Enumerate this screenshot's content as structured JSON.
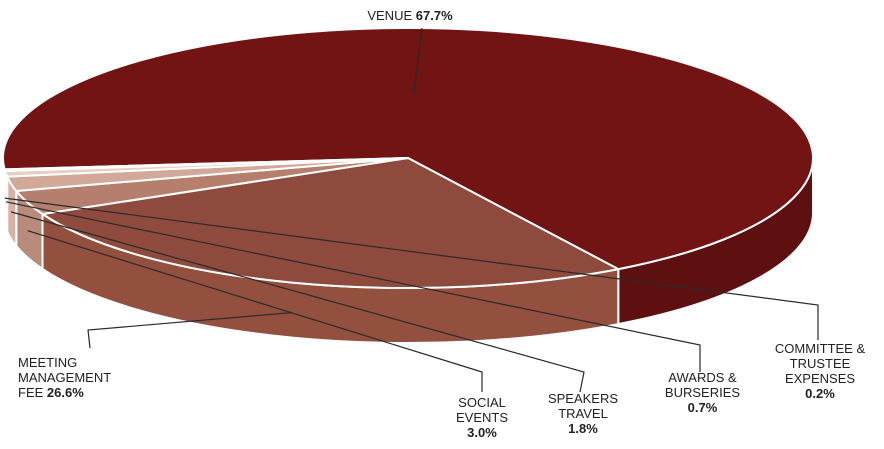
{
  "chart_data": {
    "type": "pie",
    "title": "",
    "series": [
      {
        "values": [
          67.7,
          26.6,
          3.0,
          1.8,
          0.7,
          0.2
        ]
      }
    ],
    "slices": [
      {
        "label": "VENUE",
        "value": 67.7,
        "pct_text": "67.7%",
        "color": "#721414",
        "side": "#5e1010"
      },
      {
        "label": "MEETING MANAGEMENT FEE",
        "value": 26.6,
        "pct_text": "26.6%",
        "color": "#8e4a3c",
        "side": "#93503f"
      },
      {
        "label": "SOCIAL EVENTS",
        "value": 3.0,
        "pct_text": "3.0%",
        "color": "#b57e6d",
        "side": "#b98b7b"
      },
      {
        "label": "SPEAKERS TRAVEL",
        "value": 1.8,
        "pct_text": "1.8%",
        "color": "#d2a898",
        "side": "#d6b2a4"
      },
      {
        "label": "AWARDS & BURSERIES",
        "value": 0.7,
        "pct_text": "0.7%",
        "color": "#e7cfc4",
        "side": "#e5d2c8"
      },
      {
        "label": "COMMITTEE & TRUSTEE EXPENSES",
        "value": 0.2,
        "pct_text": "0.2%",
        "color": "#f3ebe4",
        "side": "#eee4dc"
      }
    ],
    "label_lines": [
      [
        "VENUE"
      ],
      [
        "MEETING",
        "MANAGEMENT",
        "FEE"
      ],
      [
        "SOCIAL",
        "EVENTS"
      ],
      [
        "SPEAKERS",
        "TRAVEL"
      ],
      [
        "AWARDS &",
        "BURSERIES"
      ],
      [
        "COMMITTEE &",
        "TRUSTEE",
        "EXPENSES"
      ]
    ]
  }
}
